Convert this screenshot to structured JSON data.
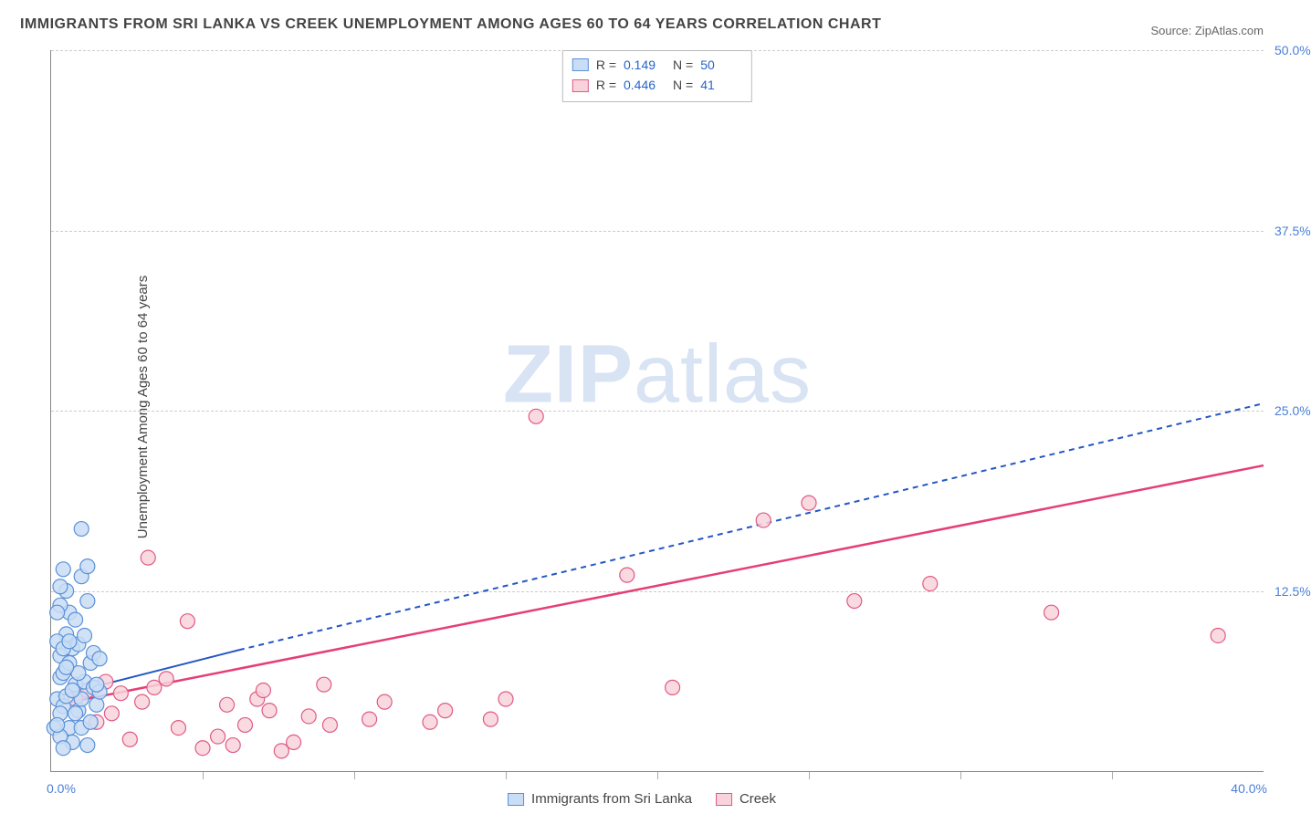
{
  "title": "IMMIGRANTS FROM SRI LANKA VS CREEK UNEMPLOYMENT AMONG AGES 60 TO 64 YEARS CORRELATION CHART",
  "source_label": "Source: ",
  "source_name": "ZipAtlas.com",
  "ylabel": "Unemployment Among Ages 60 to 64 years",
  "watermark_heavy": "ZIP",
  "watermark_light": "atlas",
  "chart": {
    "type": "scatter",
    "xlim": [
      0.0,
      40.0
    ],
    "ylim": [
      0.0,
      50.0
    ],
    "x_unit": "%",
    "y_unit": "%",
    "background_color": "#ffffff",
    "grid_color": "#cccccc",
    "grid_dash": "4,4",
    "y_gridlines": [
      12.5,
      25.0,
      37.5,
      50.0
    ],
    "x_minor_ticks": [
      5,
      10,
      15,
      20,
      25,
      30,
      35
    ],
    "xlim_labels": [
      "0.0%",
      "40.0%"
    ],
    "ytick_labels": [
      "12.5%",
      "25.0%",
      "37.5%",
      "50.0%"
    ],
    "series": [
      {
        "id": "sri_lanka",
        "label": "Immigrants from Sri Lanka",
        "color_fill": "#c9ddf6",
        "color_stroke": "#5a91d8",
        "marker_radius": 8,
        "r": 0.149,
        "n": 50,
        "trend": {
          "x1": 0.2,
          "y1": 5.2,
          "x2": 40.0,
          "y2": 25.5,
          "solid_x_end": 6.2,
          "solid_y_end": 8.4,
          "line_color": "#2456c4",
          "line_width": 2,
          "dash": "6,5"
        },
        "points": [
          [
            0.1,
            3.0
          ],
          [
            0.2,
            5.0
          ],
          [
            0.3,
            6.5
          ],
          [
            0.4,
            4.5
          ],
          [
            0.3,
            8.0
          ],
          [
            0.5,
            9.5
          ],
          [
            0.6,
            11.0
          ],
          [
            0.5,
            12.5
          ],
          [
            0.4,
            14.0
          ],
          [
            0.2,
            9.0
          ],
          [
            0.3,
            11.5
          ],
          [
            0.7,
            8.5
          ],
          [
            0.8,
            6.0
          ],
          [
            0.9,
            4.2
          ],
          [
            1.0,
            5.0
          ],
          [
            1.1,
            6.2
          ],
          [
            0.8,
            10.5
          ],
          [
            1.0,
            13.5
          ],
          [
            1.2,
            14.2
          ],
          [
            0.6,
            3.0
          ],
          [
            0.7,
            2.0
          ],
          [
            0.3,
            2.4
          ],
          [
            0.4,
            1.6
          ],
          [
            0.5,
            5.2
          ],
          [
            1.3,
            7.5
          ],
          [
            1.4,
            5.8
          ],
          [
            0.2,
            11.0
          ],
          [
            0.3,
            12.8
          ],
          [
            1.5,
            4.6
          ],
          [
            1.6,
            5.5
          ],
          [
            0.4,
            6.8
          ],
          [
            0.6,
            7.5
          ],
          [
            0.9,
            8.8
          ],
          [
            1.1,
            9.4
          ],
          [
            1.0,
            3.0
          ],
          [
            1.2,
            1.8
          ],
          [
            1.3,
            3.4
          ],
          [
            0.8,
            4.0
          ],
          [
            0.7,
            5.6
          ],
          [
            0.9,
            6.8
          ],
          [
            1.0,
            16.8
          ],
          [
            1.4,
            8.2
          ],
          [
            1.5,
            6.0
          ],
          [
            0.5,
            7.2
          ],
          [
            0.4,
            8.5
          ],
          [
            0.6,
            9.0
          ],
          [
            0.3,
            4.0
          ],
          [
            0.2,
            3.2
          ],
          [
            1.6,
            7.8
          ],
          [
            1.2,
            11.8
          ]
        ]
      },
      {
        "id": "creek",
        "label": "Creek",
        "color_fill": "#f8d3dc",
        "color_stroke": "#e05a84",
        "marker_radius": 8,
        "r": 0.446,
        "n": 41,
        "trend": {
          "x1": 0.2,
          "y1": 4.6,
          "x2": 40.0,
          "y2": 21.2,
          "solid_x_end": 40.0,
          "solid_y_end": 21.2,
          "line_color": "#e53f74",
          "line_width": 2.5,
          "dash": ""
        },
        "points": [
          [
            0.8,
            5.0
          ],
          [
            1.2,
            5.6
          ],
          [
            1.5,
            3.4
          ],
          [
            1.8,
            6.2
          ],
          [
            2.0,
            4.0
          ],
          [
            2.3,
            5.4
          ],
          [
            2.6,
            2.2
          ],
          [
            3.0,
            4.8
          ],
          [
            3.4,
            5.8
          ],
          [
            3.8,
            6.4
          ],
          [
            4.2,
            3.0
          ],
          [
            4.5,
            10.4
          ],
          [
            5.0,
            1.6
          ],
          [
            5.5,
            2.4
          ],
          [
            6.0,
            1.8
          ],
          [
            6.4,
            3.2
          ],
          [
            6.8,
            5.0
          ],
          [
            7.2,
            4.2
          ],
          [
            7.6,
            1.4
          ],
          [
            8.0,
            2.0
          ],
          [
            8.5,
            3.8
          ],
          [
            9.2,
            3.2
          ],
          [
            3.2,
            14.8
          ],
          [
            9.0,
            6.0
          ],
          [
            10.5,
            3.6
          ],
          [
            11.0,
            4.8
          ],
          [
            12.5,
            3.4
          ],
          [
            13.0,
            4.2
          ],
          [
            14.5,
            3.6
          ],
          [
            15.0,
            5.0
          ],
          [
            16.0,
            24.6
          ],
          [
            19.0,
            13.6
          ],
          [
            20.5,
            5.8
          ],
          [
            23.5,
            17.4
          ],
          [
            25.0,
            18.6
          ],
          [
            26.5,
            11.8
          ],
          [
            29.0,
            13.0
          ],
          [
            33.0,
            11.0
          ],
          [
            38.5,
            9.4
          ],
          [
            7.0,
            5.6
          ],
          [
            5.8,
            4.6
          ]
        ]
      }
    ],
    "stat_labels": {
      "R": "R =",
      "N": "N ="
    },
    "legend_swatch_border": {
      "sri_lanka": "#5a91d8",
      "creek": "#e05a84"
    }
  }
}
